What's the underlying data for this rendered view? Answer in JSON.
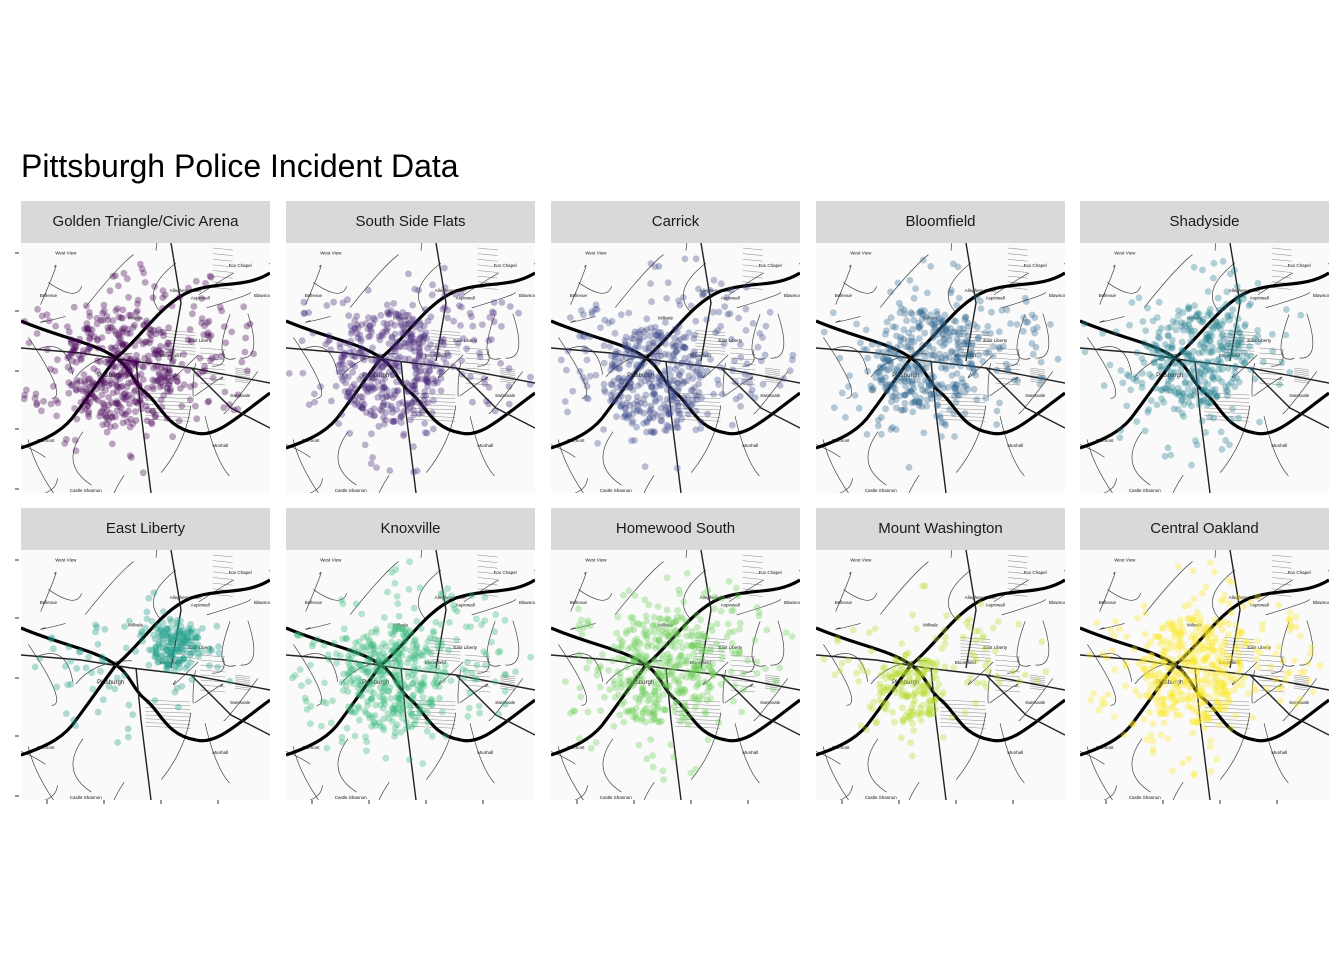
{
  "title": "Pittsburgh Police Incident Data",
  "basemap_labels": {
    "west_view": "West View",
    "fox_chapel": "Fox Chapel",
    "bellevue": "Bellevue",
    "blawnox": "Blawnox",
    "millvale": "Millvale",
    "aspinwall": "Aspinwall",
    "allegheny_river": "Allegheny River",
    "bloomfield": "Bloomfield",
    "pittsburgh": "Pittsburgh",
    "east_liberty": "East Liberty",
    "swissvale": "Swissvale",
    "dormont": "Dormont",
    "munhall": "Munhall",
    "castle_shannon": "Castle Shannon",
    "whitehall": "Whitehall"
  },
  "panels": [
    {
      "label": "Golden Triangle/Civic Arena",
      "color": "#440154",
      "spread": 1.0,
      "center": [
        0.4,
        0.5
      ],
      "density": 1.0
    },
    {
      "label": "South Side Flats",
      "color": "#482878",
      "spread": 0.95,
      "center": [
        0.42,
        0.5
      ],
      "density": 0.95
    },
    {
      "label": "Carrick",
      "color": "#3E4A89",
      "spread": 0.9,
      "center": [
        0.42,
        0.55
      ],
      "density": 0.9
    },
    {
      "label": "Bloomfield",
      "color": "#31688E",
      "spread": 0.9,
      "center": [
        0.44,
        0.48
      ],
      "density": 0.85
    },
    {
      "label": "Shadyside",
      "color": "#26828E",
      "spread": 0.85,
      "center": [
        0.48,
        0.45
      ],
      "density": 0.75
    },
    {
      "label": "East Liberty",
      "color": "#1F9E89",
      "spread": 0.45,
      "center": [
        0.62,
        0.38
      ],
      "density": 0.45
    },
    {
      "label": "Knoxville",
      "color": "#35B779",
      "spread": 0.9,
      "center": [
        0.42,
        0.52
      ],
      "density": 0.9
    },
    {
      "label": "Homewood South",
      "color": "#6DCD59",
      "spread": 0.95,
      "center": [
        0.45,
        0.48
      ],
      "density": 0.9
    },
    {
      "label": "Mount Washington",
      "color": "#B4DE2C",
      "spread": 0.6,
      "center": [
        0.38,
        0.55
      ],
      "density": 0.45
    },
    {
      "label": "Central Oakland",
      "color": "#FDE725",
      "spread": 0.9,
      "center": [
        0.45,
        0.48
      ],
      "density": 0.95
    }
  ]
}
